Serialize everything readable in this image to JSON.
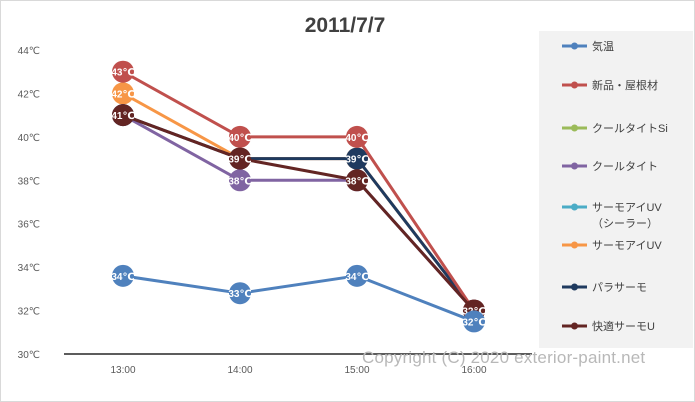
{
  "chart_data": {
    "type": "line",
    "title": "2011/7/7",
    "categories": [
      "13:00",
      "14:00",
      "15:00",
      "16:00"
    ],
    "y_ticks": [
      "30℃",
      "32℃",
      "34℃",
      "36℃",
      "38℃",
      "40℃",
      "42℃",
      "44℃"
    ],
    "ylim": [
      30,
      44
    ],
    "legend_position": "right",
    "grid": false,
    "series": [
      {
        "name": "気温",
        "color": "#4F81BD",
        "values": [
          33.6,
          32.8,
          33.6,
          31.5
        ],
        "point_labels": [
          "34℃",
          "33℃",
          "34℃",
          "32℃"
        ]
      },
      {
        "name": "新品・屋根材",
        "color": "#C0504D",
        "values": [
          43,
          40,
          40,
          32
        ],
        "point_labels": [
          "43℃",
          "40℃",
          "40℃",
          "32℃"
        ]
      },
      {
        "name": "クールタイトSi",
        "color": "#9BBB59",
        "values": [
          null,
          null,
          null,
          null
        ],
        "point_labels": [
          "",
          "",
          "",
          ""
        ]
      },
      {
        "name": "クールタイト",
        "color": "#8064A2",
        "values": [
          41,
          38,
          38,
          32
        ],
        "point_labels": [
          "41℃",
          "38℃",
          "38℃",
          "32℃"
        ]
      },
      {
        "name": "サーモアイUV\n（シーラー）",
        "color": "#4BACC6",
        "values": [
          null,
          null,
          null,
          null
        ],
        "point_labels": [
          "",
          "",
          "",
          ""
        ]
      },
      {
        "name": "サーモアイUV",
        "color": "#F79646",
        "values": [
          42,
          39,
          39,
          32
        ],
        "point_labels": [
          "42℃",
          "39℃",
          "39℃",
          "32℃"
        ]
      },
      {
        "name": "パラサーモ",
        "color": "#1F3A5F",
        "values": [
          41,
          39,
          39,
          32
        ],
        "point_labels": [
          "41℃",
          "39℃",
          "39℃",
          "32℃"
        ]
      },
      {
        "name": "快適サーモU",
        "color": "#632523",
        "values": [
          41,
          39,
          38,
          32
        ],
        "point_labels": [
          "41℃",
          "39℃",
          "38℃",
          "32℃"
        ]
      }
    ]
  },
  "watermark": "Copyright (C) 2020 exterior-paint.net"
}
